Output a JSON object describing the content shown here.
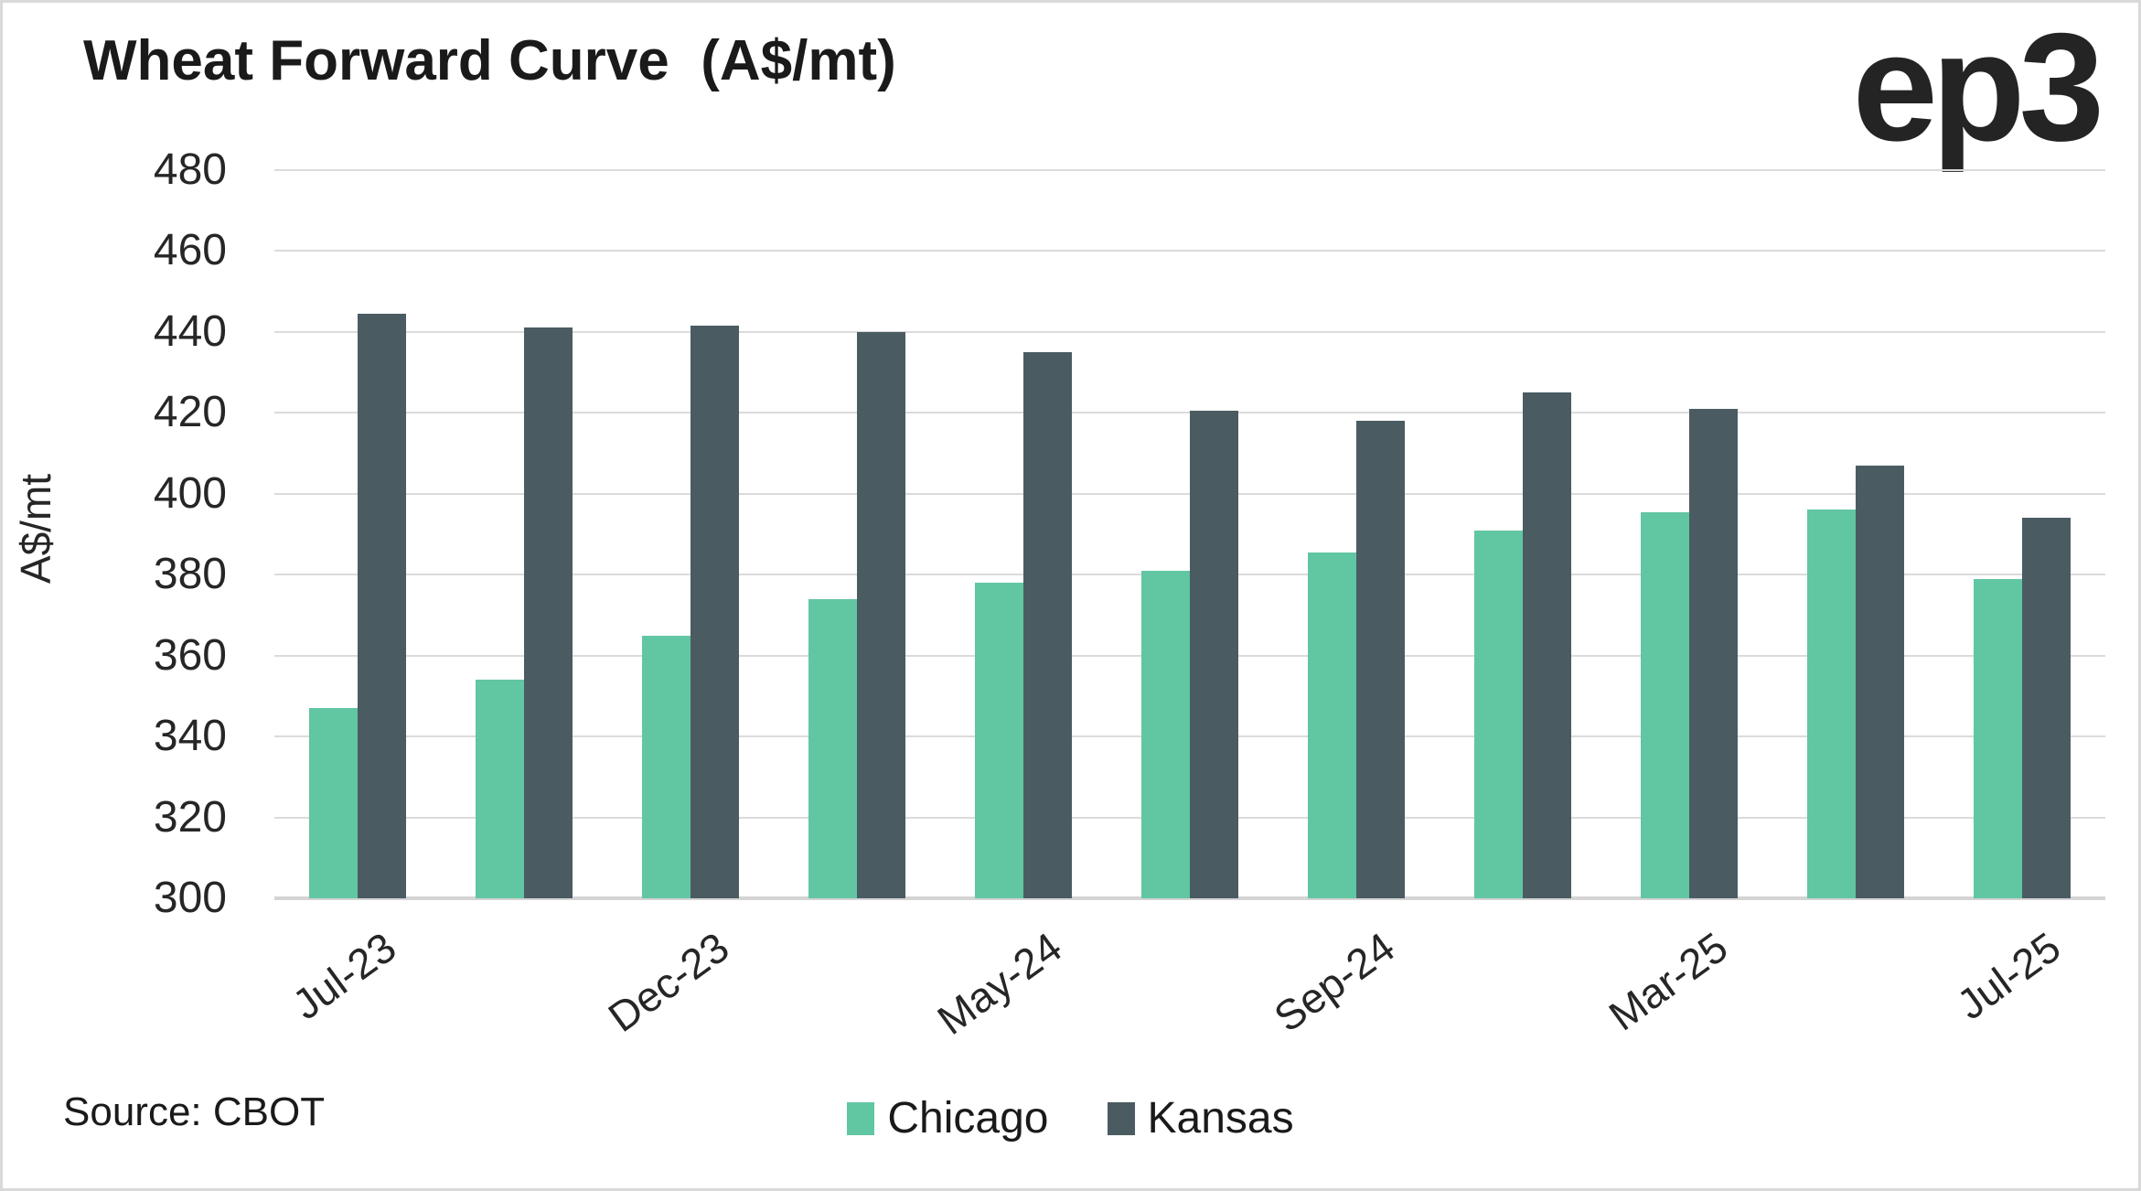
{
  "title": "Wheat Forward Curve  (A$/mt)",
  "logo_text": "ep3",
  "source_note": "Source: CBOT",
  "colors": {
    "chicago": "#61C6A2",
    "kansas": "#4A5C62",
    "gridline": "#DBDBDB",
    "baseline": "#D4D4D4",
    "text": "#262626",
    "border": "#D9D9D9"
  },
  "chart_data": {
    "type": "bar",
    "title": "Wheat Forward Curve (A$/mt)",
    "xlabel": "",
    "ylabel": "A$/mt",
    "ylim": [
      300,
      480
    ],
    "ytick_step": 20,
    "ytick_labels": [
      "300",
      "320",
      "340",
      "360",
      "380",
      "400",
      "420",
      "440",
      "460",
      "480"
    ],
    "grid": true,
    "legend_position": "bottom-center",
    "categories": [
      "Jul-23",
      "",
      "Dec-23",
      "",
      "May-24",
      "",
      "Sep-24",
      "",
      "Mar-25",
      "",
      "Jul-25"
    ],
    "series": [
      {
        "name": "Chicago",
        "color": "#61C6A2",
        "values": [
          347,
          354,
          365,
          374,
          378,
          381,
          385.5,
          391,
          395.5,
          396,
          379
        ]
      },
      {
        "name": "Kansas",
        "color": "#4A5C62",
        "values": [
          444.5,
          441,
          441.5,
          440,
          435,
          420.5,
          418,
          425,
          421,
          407,
          394
        ]
      }
    ]
  }
}
